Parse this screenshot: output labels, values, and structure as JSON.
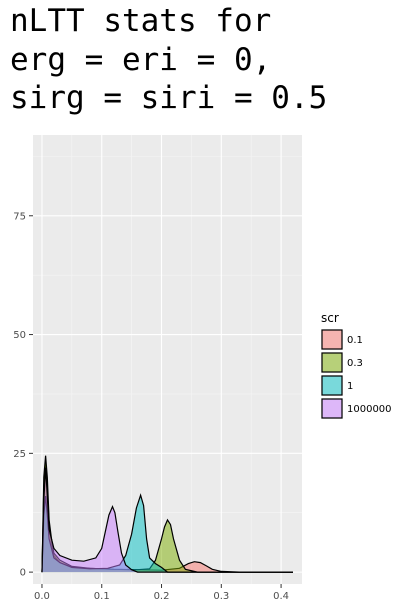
{
  "chart_data": {
    "type": "area",
    "title_lines": [
      "nLTT stats for",
      "erg = eri = 0,",
      "sirg = siri = 0.5"
    ],
    "xlabel": "",
    "ylabel": "",
    "xlim": [
      -0.015,
      0.435
    ],
    "ylim": [
      -2.5,
      92
    ],
    "x_ticks": [
      {
        "value": 0.0,
        "label": "0.0"
      },
      {
        "value": 0.1,
        "label": "0.1"
      },
      {
        "value": 0.2,
        "label": "0.2"
      },
      {
        "value": 0.3,
        "label": "0.3"
      },
      {
        "value": 0.4,
        "label": "0.4"
      }
    ],
    "y_ticks": [
      {
        "value": 0,
        "label": "0"
      },
      {
        "value": 25,
        "label": "25"
      },
      {
        "value": 50,
        "label": "50"
      },
      {
        "value": 75,
        "label": "75"
      }
    ],
    "grid": true,
    "panel_background": "#ebebeb",
    "legend": {
      "title": "scr",
      "placement": "right",
      "entries": [
        "0.1",
        "0.3",
        "1",
        "1000000"
      ]
    },
    "series": [
      {
        "name": "0.1",
        "color": "#F8766D",
        "x": [
          0.0,
          0.003,
          0.006,
          0.009,
          0.012,
          0.016,
          0.02,
          0.03,
          0.05,
          0.08,
          0.12,
          0.16,
          0.2,
          0.23,
          0.245,
          0.255,
          0.265,
          0.275,
          0.285,
          0.3,
          0.33,
          0.42
        ],
        "y": [
          0,
          18,
          23,
          18,
          10,
          6,
          3.5,
          2,
          1,
          0.8,
          0.6,
          0.5,
          0.4,
          0.8,
          1.8,
          2.2,
          2.0,
          1.3,
          0.6,
          0.15,
          0,
          0
        ]
      },
      {
        "name": "0.3",
        "color": "#7CAE00",
        "x": [
          0.0,
          0.003,
          0.006,
          0.009,
          0.012,
          0.016,
          0.02,
          0.03,
          0.05,
          0.08,
          0.12,
          0.16,
          0.18,
          0.19,
          0.2,
          0.205,
          0.21,
          0.215,
          0.22,
          0.23,
          0.24,
          0.26,
          0.42
        ],
        "y": [
          0,
          20,
          24.5,
          20,
          11,
          7,
          4,
          2.5,
          1.2,
          0.8,
          0.6,
          0.5,
          0.7,
          2.5,
          7,
          9.5,
          11,
          10,
          7,
          2.5,
          0.6,
          0,
          0
        ]
      },
      {
        "name": "1",
        "color": "#00BFC4",
        "x": [
          0.0,
          0.003,
          0.006,
          0.009,
          0.012,
          0.016,
          0.02,
          0.03,
          0.05,
          0.08,
          0.11,
          0.13,
          0.14,
          0.15,
          0.158,
          0.165,
          0.17,
          0.175,
          0.18,
          0.19,
          0.2,
          0.21,
          0.42
        ],
        "y": [
          0,
          12,
          16,
          12,
          7,
          5,
          3,
          2,
          1,
          0.7,
          0.8,
          1.5,
          3.5,
          8,
          13.5,
          16.2,
          14,
          7,
          3,
          1.8,
          1.0,
          0,
          0
        ]
      },
      {
        "name": "1000000",
        "color": "#C77CFF",
        "x": [
          0.0,
          0.003,
          0.006,
          0.009,
          0.012,
          0.016,
          0.02,
          0.03,
          0.05,
          0.07,
          0.09,
          0.1,
          0.106,
          0.112,
          0.118,
          0.122,
          0.127,
          0.133,
          0.14,
          0.15,
          0.16,
          0.42
        ],
        "y": [
          0,
          15,
          22,
          16,
          9,
          7,
          5,
          3.5,
          2.5,
          2.3,
          3,
          5,
          8.5,
          12,
          13.8,
          12.5,
          8.5,
          4,
          1.5,
          0.5,
          0,
          0
        ]
      }
    ]
  }
}
